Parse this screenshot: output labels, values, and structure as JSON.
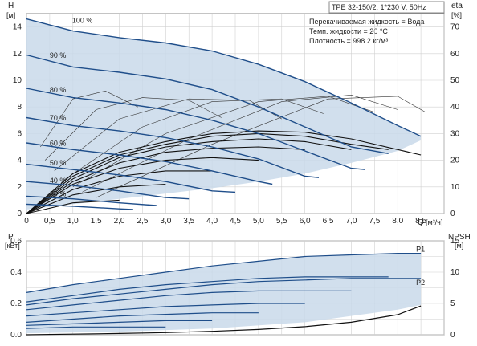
{
  "chart_data": [
    {
      "id": "qh",
      "type": "line",
      "title": "TPE 32-150/2, 1*230 V, 50Hz",
      "annotations": [
        "Перекачиваемая жидкость = Вода",
        "Темп. жидкости = 20 °C",
        "Плотность = 998.2 кг/м³"
      ],
      "y_axis_left": {
        "label": "H",
        "unit": "[м]",
        "range": [
          0,
          15
        ],
        "ticks": [
          0,
          2,
          4,
          6,
          8,
          10,
          12,
          14
        ]
      },
      "y_axis_right": {
        "label": "eta",
        "unit": "[%]",
        "range": [
          0,
          75
        ],
        "ticks": [
          0,
          10,
          20,
          30,
          40,
          50,
          60,
          70
        ]
      },
      "x_axis": {
        "label": "Q",
        "unit": "[м³/ч]",
        "range": [
          0,
          9
        ],
        "ticks": [
          "0",
          "0,5",
          "1,0",
          "1,5",
          "2,0",
          "2,5",
          "3,0",
          "3,5",
          "4,0",
          "4,5",
          "5,0",
          "5,5",
          "6,0",
          "6,5",
          "7,0",
          "7,5",
          "8,0",
          "8,5"
        ]
      },
      "grid": true,
      "series": [
        {
          "name": "100 %",
          "label_at": [
            0.5,
            14.3
          ],
          "x": [
            0,
            1,
            2,
            3,
            4,
            5,
            6,
            7,
            8,
            8.5
          ],
          "y": [
            14.6,
            13.7,
            13.2,
            12.8,
            12.2,
            11.2,
            9.9,
            8.3,
            6.6,
            5.8
          ]
        },
        {
          "name": "90 %",
          "label_at": [
            0.5,
            11.7
          ],
          "x": [
            0,
            1,
            2,
            3,
            4,
            5,
            6,
            7,
            7.8
          ],
          "y": [
            11.9,
            11.0,
            10.6,
            10.1,
            9.3,
            8.0,
            6.5,
            5.0,
            4.5
          ]
        },
        {
          "name": "80 %",
          "label_at": [
            0.5,
            9.1
          ],
          "x": [
            0,
            1,
            2,
            3,
            4,
            5,
            6,
            7,
            7.3
          ],
          "y": [
            9.4,
            8.7,
            8.3,
            7.8,
            7.0,
            6.0,
            4.7,
            3.4,
            3.3
          ]
        },
        {
          "name": "70 %",
          "label_at": [
            0.5,
            7.0
          ],
          "x": [
            0,
            1,
            2,
            3,
            4,
            5,
            6,
            6.3
          ],
          "y": [
            7.2,
            6.6,
            6.2,
            5.7,
            5.0,
            4.1,
            2.8,
            2.7
          ]
        },
        {
          "name": "60 %",
          "label_at": [
            0.5,
            5.1
          ],
          "x": [
            0,
            1,
            2,
            3,
            4,
            5,
            5.3
          ],
          "y": [
            5.3,
            4.8,
            4.4,
            3.9,
            3.2,
            2.4,
            2.2
          ]
        },
        {
          "name": "50 %",
          "label_at": [
            0.5,
            3.6
          ],
          "x": [
            0,
            1,
            2,
            3,
            4,
            4.5
          ],
          "y": [
            3.7,
            3.3,
            2.9,
            2.4,
            1.7,
            1.6
          ]
        },
        {
          "name": "40 %",
          "label_at": [
            0.5,
            2.3
          ],
          "x": [
            0,
            1,
            2,
            3,
            3.5
          ],
          "y": [
            2.4,
            2.1,
            1.7,
            1.2,
            1.1
          ]
        },
        {
          "name": "30 %",
          "label_at": [
            0.5,
            1.3
          ],
          "x": [
            0,
            1,
            2,
            2.8
          ],
          "y": [
            1.3,
            1.1,
            0.8,
            0.6
          ]
        },
        {
          "name": "",
          "x": [
            0,
            1,
            2,
            2.3
          ],
          "y": [
            0.7,
            0.55,
            0.35,
            0.3
          ]
        }
      ],
      "operating_range": {
        "upper_y": [
          14.6,
          13.7,
          13.2,
          12.8,
          12.2,
          11.2,
          9.9,
          8.3,
          6.6,
          5.8
        ],
        "upper_x": [
          0,
          1,
          2,
          3,
          4,
          5,
          6,
          7,
          8,
          8.5
        ],
        "lower_x": [
          0,
          0.5,
          1,
          2,
          3,
          4,
          5,
          6,
          7,
          8,
          8.5
        ],
        "lower_y": [
          0.3,
          0.5,
          0.7,
          1.1,
          1.5,
          1.9,
          2.4,
          3.0,
          3.8,
          4.7,
          5.5
        ]
      },
      "efficiency_curves": [
        {
          "x": [
            0,
            1,
            2,
            3,
            4,
            5,
            6,
            7,
            8,
            8.5
          ],
          "eta": [
            0,
            15,
            23,
            27,
            30,
            31,
            30.5,
            28,
            24,
            22
          ]
        },
        {
          "x": [
            0,
            1,
            2,
            3,
            4,
            5,
            6,
            7,
            7.8
          ],
          "eta": [
            0,
            14,
            22,
            26,
            29,
            30,
            29,
            26,
            24
          ]
        },
        {
          "x": [
            0,
            1,
            2,
            3,
            4,
            5,
            6,
            7
          ],
          "eta": [
            0,
            13,
            21,
            25,
            27,
            28,
            27,
            24
          ]
        },
        {
          "x": [
            0,
            1,
            2,
            3,
            4,
            5,
            6
          ],
          "eta": [
            0,
            12,
            19,
            23,
            24.5,
            25,
            24
          ]
        },
        {
          "x": [
            0,
            1,
            2,
            3,
            4,
            5
          ],
          "eta": [
            0,
            11,
            17,
            20,
            21,
            20
          ]
        },
        {
          "x": [
            0,
            1,
            2,
            3,
            4
          ],
          "eta": [
            0,
            9,
            14,
            16,
            16
          ]
        },
        {
          "x": [
            0,
            1,
            2,
            3
          ],
          "eta": [
            0,
            7,
            10,
            11
          ]
        },
        {
          "x": [
            0,
            1,
            2
          ],
          "eta": [
            0,
            4,
            5
          ]
        }
      ],
      "iso_efficiency_arcs": [
        {
          "x": [
            0.3,
            1.0,
            1.7,
            2.4
          ],
          "h": [
            5.0,
            8.6,
            9.2,
            8.0
          ]
        },
        {
          "x": [
            0.4,
            1.5,
            2.5,
            3.5,
            4.2
          ],
          "h": [
            4.0,
            7.8,
            8.7,
            8.5,
            7.2
          ]
        },
        {
          "x": [
            0.6,
            2.0,
            3.5,
            4.8,
            5.5
          ],
          "h": [
            3.2,
            7.1,
            8.6,
            8.5,
            7.1
          ]
        },
        {
          "x": [
            0.8,
            2.5,
            4.0,
            5.5,
            6.4
          ],
          "h": [
            2.5,
            6.5,
            8.4,
            8.6,
            7.5
          ]
        },
        {
          "x": [
            1.0,
            3.0,
            5.0,
            6.5,
            7.5
          ],
          "h": [
            2.0,
            6.0,
            8.4,
            8.8,
            7.6
          ]
        },
        {
          "x": [
            1.2,
            3.5,
            5.5,
            7.0,
            8.0
          ],
          "h": [
            1.6,
            5.6,
            8.4,
            8.9,
            7.8
          ]
        },
        {
          "x": [
            1.5,
            4.0,
            6.5,
            8.0,
            8.6
          ],
          "h": [
            1.2,
            5.2,
            8.6,
            8.8,
            7.6
          ]
        }
      ]
    },
    {
      "id": "power",
      "type": "line",
      "y_axis_left": {
        "label": "P",
        "unit": "[кВт]",
        "range": [
          0,
          0.6
        ],
        "ticks": [
          "0.0",
          "0.2",
          "0.4",
          "0.6"
        ]
      },
      "y_axis_right": {
        "label": "NPSH",
        "unit": "[м]",
        "range": [
          0,
          15
        ],
        "ticks": [
          0,
          5,
          10,
          15
        ]
      },
      "x_axis": {
        "range": [
          0,
          9
        ]
      },
      "grid": true,
      "series": [
        {
          "name": "P1",
          "x": [
            0,
            1,
            2,
            3,
            4,
            5,
            6,
            7,
            8,
            8.5
          ],
          "y": [
            0.27,
            0.32,
            0.36,
            0.4,
            0.44,
            0.47,
            0.5,
            0.51,
            0.52,
            0.52
          ]
        },
        {
          "name": "P2",
          "x": [
            0,
            1,
            2,
            3,
            4,
            5,
            6,
            7,
            8,
            8.5
          ],
          "y": [
            0.19,
            0.23,
            0.26,
            0.29,
            0.32,
            0.34,
            0.35,
            0.36,
            0.36,
            0.36
          ]
        },
        {
          "name": "",
          "x": [
            0,
            1,
            2,
            3,
            4,
            5,
            6,
            7,
            7.8
          ],
          "y": [
            0.21,
            0.25,
            0.29,
            0.32,
            0.34,
            0.36,
            0.37,
            0.37,
            0.37
          ]
        },
        {
          "name": "",
          "x": [
            0,
            1,
            2,
            3,
            4,
            5,
            6,
            7
          ],
          "y": [
            0.16,
            0.19,
            0.22,
            0.25,
            0.27,
            0.28,
            0.28,
            0.28
          ]
        },
        {
          "name": "",
          "x": [
            0,
            1,
            2,
            3,
            4,
            5,
            6
          ],
          "y": [
            0.12,
            0.14,
            0.16,
            0.18,
            0.19,
            0.2,
            0.2
          ]
        },
        {
          "name": "",
          "x": [
            0,
            1,
            2,
            3,
            4,
            5
          ],
          "y": [
            0.08,
            0.1,
            0.12,
            0.13,
            0.14,
            0.14
          ]
        },
        {
          "name": "",
          "x": [
            0,
            1,
            2,
            3,
            4
          ],
          "y": [
            0.06,
            0.07,
            0.08,
            0.09,
            0.09
          ]
        },
        {
          "name": "",
          "x": [
            0,
            1,
            2,
            3
          ],
          "y": [
            0.04,
            0.05,
            0.05,
            0.05
          ]
        }
      ],
      "npsh": {
        "x": [
          0,
          1,
          2,
          3,
          4,
          5,
          6,
          7,
          8,
          8.5
        ],
        "y": [
          0.0,
          0.1,
          0.2,
          0.35,
          0.55,
          0.85,
          1.3,
          2.0,
          3.2,
          4.6
        ],
        "unit": "м"
      },
      "operating_range": {
        "upper_x": [
          0,
          1,
          2,
          3,
          4,
          5,
          6,
          7,
          8,
          8.5
        ],
        "upper_y": [
          0.27,
          0.32,
          0.36,
          0.4,
          0.44,
          0.47,
          0.5,
          0.51,
          0.52,
          0.52
        ],
        "lower_x": [
          0,
          2,
          4,
          6,
          8,
          8.5
        ],
        "lower_y": [
          0.01,
          0.02,
          0.04,
          0.08,
          0.16,
          0.19
        ]
      }
    }
  ]
}
